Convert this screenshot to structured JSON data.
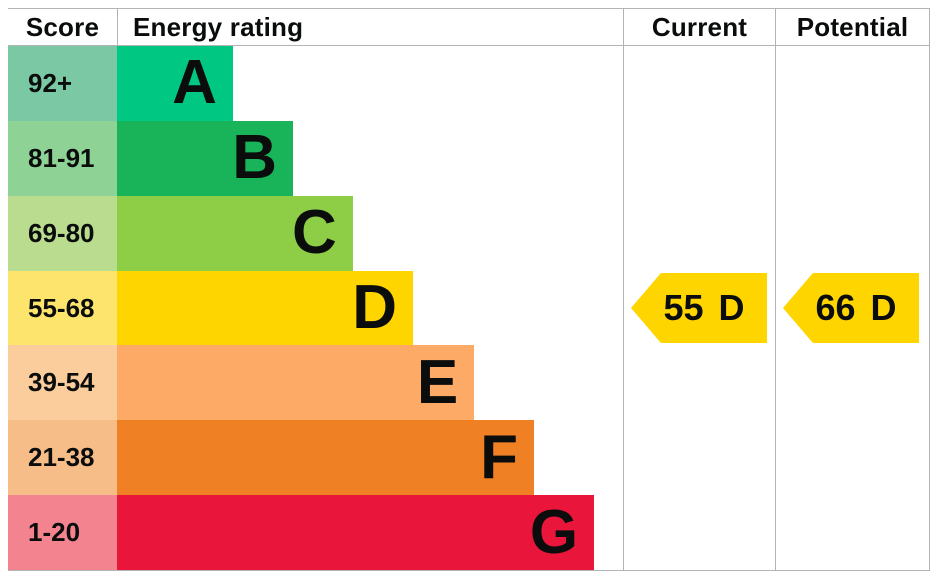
{
  "header": {
    "score": "Score",
    "energy_rating": "Energy rating",
    "current": "Current",
    "potential": "Potential"
  },
  "colors": {
    "border": "#b1b4b6",
    "text": "#0b0c0c",
    "arrow": "#ffd500"
  },
  "chart_data": {
    "type": "bar",
    "title": "Energy rating",
    "columns": [
      "Score",
      "Energy rating",
      "Current",
      "Potential"
    ],
    "bands": [
      {
        "letter": "A",
        "score_range": "92+",
        "bar_color": "#00c781",
        "score_cell_color": "#7bc8a4",
        "bar_length_pct": 22.9
      },
      {
        "letter": "B",
        "score_range": "81-91",
        "bar_color": "#19b459",
        "score_cell_color": "#8ed295",
        "bar_length_pct": 34.8
      },
      {
        "letter": "C",
        "score_range": "69-80",
        "bar_color": "#8dce46",
        "score_cell_color": "#b9dc8f",
        "bar_length_pct": 46.6
      },
      {
        "letter": "D",
        "score_range": "55-68",
        "bar_color": "#ffd500",
        "score_cell_color": "#fde46c",
        "bar_length_pct": 58.5
      },
      {
        "letter": "E",
        "score_range": "39-54",
        "bar_color": "#fcaa65",
        "score_cell_color": "#fbcd9d",
        "bar_length_pct": 70.6
      },
      {
        "letter": "F",
        "score_range": "21-38",
        "bar_color": "#ef8023",
        "score_cell_color": "#f6bd88",
        "bar_length_pct": 82.4
      },
      {
        "letter": "G",
        "score_range": "1-20",
        "bar_color": "#e9153b",
        "score_cell_color": "#f2838f",
        "bar_length_pct": 94.3
      }
    ],
    "current": {
      "score": "55",
      "rating": "D",
      "band_index": 3,
      "arrow_color": "#ffd500"
    },
    "potential": {
      "score": "66",
      "rating": "D",
      "band_index": 3,
      "arrow_color": "#ffd500"
    }
  }
}
